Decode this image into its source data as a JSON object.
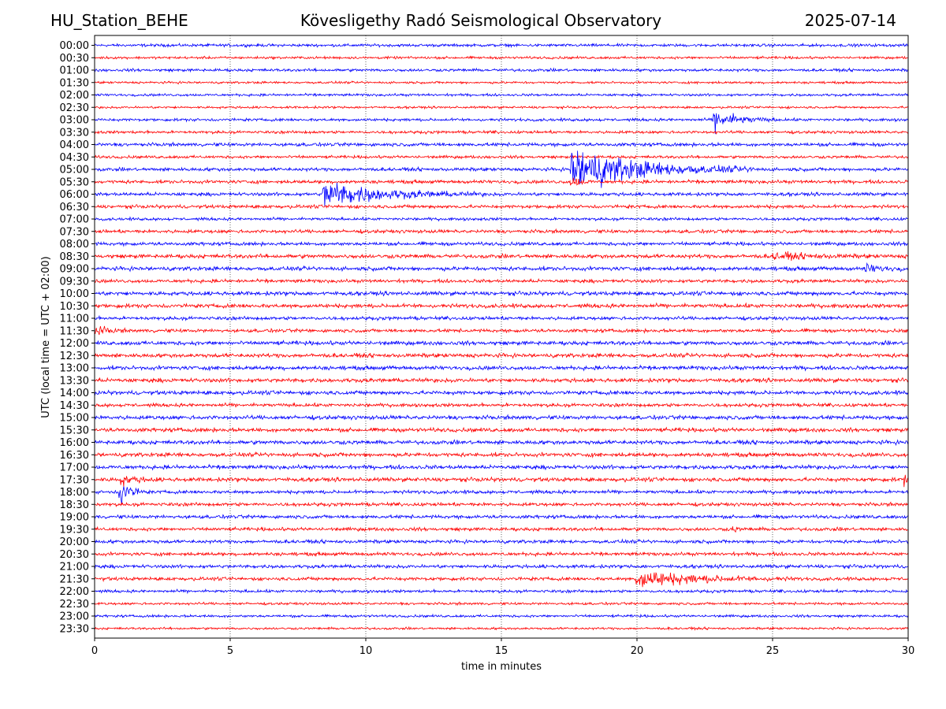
{
  "header": {
    "station": "HU_Station_BEHE",
    "observatory": "Kövesligethy Radó Seismological Observatory",
    "date": "2025-07-14"
  },
  "chart_data": {
    "type": "line",
    "xlabel": "time in minutes",
    "ylabel": "UTC (local time = UTC + 02:00)",
    "xlim": [
      0,
      30
    ],
    "xticks": [
      "0",
      "5",
      "10",
      "15",
      "20",
      "25",
      "30"
    ],
    "grid": "vertical dotted lines at 5-minute intervals",
    "trace_colors": [
      "#0000ff",
      "#ff0000"
    ],
    "color_rule": "alternating: full-hour rows blue, half-hour rows red",
    "rows": [
      "00:00",
      "00:30",
      "01:00",
      "01:30",
      "02:00",
      "02:30",
      "03:00",
      "03:30",
      "04:00",
      "04:30",
      "05:00",
      "05:30",
      "06:00",
      "06:30",
      "07:00",
      "07:30",
      "08:00",
      "08:30",
      "09:00",
      "09:30",
      "10:00",
      "10:30",
      "11:00",
      "11:30",
      "12:00",
      "12:30",
      "13:00",
      "13:30",
      "14:00",
      "14:30",
      "15:00",
      "15:30",
      "16:00",
      "16:30",
      "17:00",
      "17:30",
      "18:00",
      "18:30",
      "19:00",
      "19:30",
      "20:00",
      "20:30",
      "21:00",
      "21:30",
      "22:00",
      "22:30",
      "23:00",
      "23:30"
    ],
    "noise_level": [
      0.25,
      0.22,
      0.25,
      0.2,
      0.22,
      0.2,
      0.25,
      0.25,
      0.3,
      0.25,
      0.3,
      0.3,
      0.3,
      0.3,
      0.25,
      0.3,
      0.3,
      0.35,
      0.35,
      0.3,
      0.35,
      0.35,
      0.3,
      0.3,
      0.35,
      0.35,
      0.35,
      0.35,
      0.35,
      0.3,
      0.35,
      0.35,
      0.35,
      0.35,
      0.35,
      0.35,
      0.3,
      0.3,
      0.3,
      0.3,
      0.3,
      0.3,
      0.3,
      0.3,
      0.25,
      0.22,
      0.22,
      0.2
    ],
    "events": [
      {
        "row": "03:00",
        "start_min": 22.8,
        "duration_min": 2.5,
        "peak_amp": 1.9
      },
      {
        "row": "05:00",
        "start_min": 17.55,
        "duration_min": 7.0,
        "peak_amp": 4.3
      },
      {
        "row": "05:30",
        "start_min": 17.55,
        "duration_min": 0.9,
        "peak_amp": 1.2
      },
      {
        "row": "06:00",
        "start_min": 8.4,
        "duration_min": 6.0,
        "peak_amp": 2.5
      },
      {
        "row": "08:30",
        "start_min": 25.0,
        "duration_min": 3.5,
        "peak_amp": 0.6
      },
      {
        "row": "09:00",
        "start_min": 28.4,
        "duration_min": 1.6,
        "peak_amp": 0.8
      },
      {
        "row": "11:30",
        "start_min": 0.0,
        "duration_min": 1.2,
        "peak_amp": 1.0
      },
      {
        "row": "17:30",
        "start_min": 0.9,
        "duration_min": 1.5,
        "peak_amp": 1.0
      },
      {
        "row": "18:00",
        "start_min": 0.9,
        "duration_min": 1.0,
        "peak_amp": 3.3
      },
      {
        "row": "17:30",
        "start_min": 29.85,
        "duration_min": 0.15,
        "peak_amp": 2.8
      },
      {
        "row": "19:30",
        "start_min": 23.5,
        "duration_min": 0.4,
        "peak_amp": 0.8
      },
      {
        "row": "21:30",
        "start_min": 19.95,
        "duration_min": 6.0,
        "peak_amp": 1.7
      }
    ]
  }
}
